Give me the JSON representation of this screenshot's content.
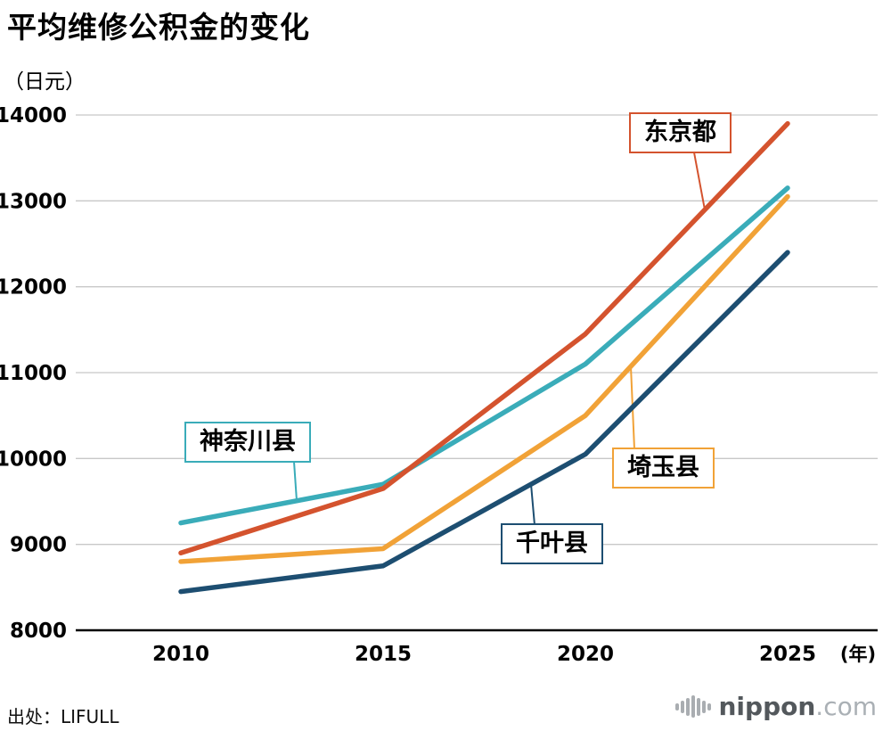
{
  "title": "平均维修公积金的变化",
  "y_axis_unit": "（日元）",
  "x_axis_unit": "(年)",
  "source": "出处：LIFULL",
  "logo": {
    "text": "nippon",
    "suffix": ".com"
  },
  "chart_data": {
    "type": "line",
    "x": [
      2010,
      2015,
      2020,
      2025
    ],
    "ylim": [
      8000,
      14000
    ],
    "y_ticks": [
      8000,
      9000,
      10000,
      11000,
      12000,
      13000,
      14000
    ],
    "grid": true,
    "legend_position": "callouts",
    "series": [
      {
        "name": "千叶县",
        "color": "#1d4e71",
        "values": [
          8450,
          8750,
          10050,
          12400
        ]
      },
      {
        "name": "埼玉县",
        "color": "#f1a237",
        "values": [
          8800,
          8950,
          10500,
          13050
        ]
      },
      {
        "name": "神奈川县",
        "color": "#3aacb9",
        "values": [
          9250,
          9700,
          11100,
          13150
        ]
      },
      {
        "name": "东京都",
        "color": "#d4532e",
        "values": [
          8900,
          9650,
          11450,
          13900
        ]
      }
    ]
  }
}
